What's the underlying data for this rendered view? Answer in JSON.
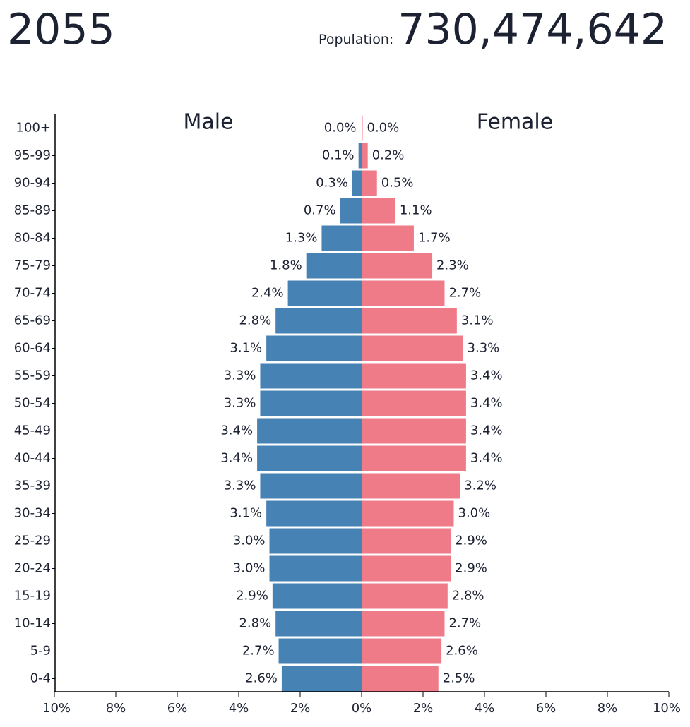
{
  "header": {
    "year": "2055",
    "population_label": "Population:",
    "population_value": "730,474,642"
  },
  "colors": {
    "male": "#4682b4",
    "female": "#ef7b89",
    "text": "#1d2233",
    "axis": "#000000"
  },
  "chart_data": {
    "type": "bar",
    "orientation": "horizontal",
    "series": [
      {
        "name": "Male",
        "values": [
          0.0,
          0.1,
          0.3,
          0.7,
          1.3,
          1.8,
          2.4,
          2.8,
          3.1,
          3.3,
          3.3,
          3.4,
          3.4,
          3.3,
          3.1,
          3.0,
          3.0,
          2.9,
          2.8,
          2.7,
          2.6
        ]
      },
      {
        "name": "Female",
        "values": [
          0.0,
          0.2,
          0.5,
          1.1,
          1.7,
          2.3,
          2.7,
          3.1,
          3.3,
          3.4,
          3.4,
          3.4,
          3.4,
          3.2,
          3.0,
          2.9,
          2.9,
          2.8,
          2.7,
          2.6,
          2.5
        ]
      }
    ],
    "categories": [
      "100+",
      "95-99",
      "90-94",
      "85-89",
      "80-84",
      "75-79",
      "70-74",
      "65-69",
      "60-64",
      "55-59",
      "50-54",
      "45-49",
      "40-44",
      "35-39",
      "30-34",
      "25-29",
      "20-24",
      "15-19",
      "10-14",
      "5-9",
      "0-4"
    ],
    "value_labels": {
      "male": [
        "0.0%",
        "0.1%",
        "0.3%",
        "0.7%",
        "1.3%",
        "1.8%",
        "2.4%",
        "2.8%",
        "3.1%",
        "3.3%",
        "3.3%",
        "3.4%",
        "3.4%",
        "3.3%",
        "3.1%",
        "3.0%",
        "3.0%",
        "2.9%",
        "2.8%",
        "2.7%",
        "2.6%"
      ],
      "female": [
        "0.0%",
        "0.2%",
        "0.5%",
        "1.1%",
        "1.7%",
        "2.3%",
        "2.7%",
        "3.1%",
        "3.3%",
        "3.4%",
        "3.4%",
        "3.4%",
        "3.4%",
        "3.2%",
        "3.0%",
        "2.9%",
        "2.9%",
        "2.8%",
        "2.7%",
        "2.6%",
        "2.5%"
      ]
    },
    "x_ticks": [
      {
        "value": -10,
        "label": "10%"
      },
      {
        "value": -8,
        "label": "8%"
      },
      {
        "value": -6,
        "label": "6%"
      },
      {
        "value": -4,
        "label": "4%"
      },
      {
        "value": -2,
        "label": "2%"
      },
      {
        "value": 0,
        "label": "0%"
      },
      {
        "value": 2,
        "label": "2%"
      },
      {
        "value": 4,
        "label": "4%"
      },
      {
        "value": 6,
        "label": "6%"
      },
      {
        "value": 8,
        "label": "8%"
      },
      {
        "value": 10,
        "label": "10%"
      }
    ],
    "xlim": [
      -10,
      10
    ],
    "male_heading": "Male",
    "female_heading": "Female",
    "grid": false
  }
}
